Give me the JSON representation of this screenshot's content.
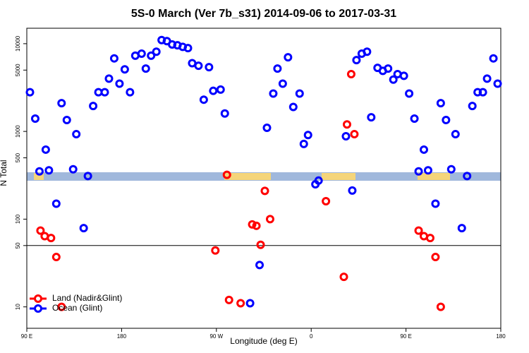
{
  "chart_data": {
    "type": "scatter",
    "title": "5S-0 March (Ver 7b_s31)   2014-09-06 to 2017-03-31",
    "x_label": "Longitude (deg E)",
    "y_label": "N Total",
    "xlim": [
      90,
      540
    ],
    "ylim": [
      5.7,
      15000
    ],
    "log_y": true,
    "xticks": [
      {
        "value": 90,
        "label": "90 E"
      },
      {
        "value": 180,
        "label": "180"
      },
      {
        "value": 270,
        "label": "90 W"
      },
      {
        "value": 360,
        "label": "0"
      },
      {
        "value": 450,
        "label": "90 E"
      },
      {
        "value": 540,
        "label": "180"
      }
    ],
    "yticks": [
      10,
      50,
      100,
      500,
      1000,
      5000,
      10000
    ],
    "hline": 50,
    "legend": "bottom-left",
    "series": [
      {
        "name": "Land (Nadir&Glint)",
        "color": "#ff0000",
        "x": [
          103,
          107,
          113,
          118,
          123,
          269,
          280,
          282,
          293,
          304,
          308,
          312,
          316,
          321,
          374,
          391,
          394,
          398,
          401,
          462,
          467,
          473,
          478,
          483
        ],
        "values": [
          74,
          64,
          61,
          37,
          10,
          44,
          320,
          12,
          11,
          87,
          84,
          51,
          210,
          100,
          160,
          22,
          1200,
          4500,
          930,
          74,
          64,
          61,
          37,
          10
        ]
      },
      {
        "name": "Ocean (Glint)",
        "color": "#0000ff",
        "x": [
          93,
          98,
          102,
          108,
          111,
          118,
          123,
          128,
          134,
          137,
          144,
          148,
          153,
          158,
          164,
          168,
          173,
          178,
          183,
          188,
          193,
          199,
          203,
          208,
          213,
          218,
          223,
          228,
          233,
          238,
          243,
          247,
          253,
          258,
          263,
          267,
          274,
          278,
          302,
          311,
          318,
          324,
          328,
          333,
          338,
          343,
          349,
          353,
          357,
          364,
          367,
          393,
          399,
          403,
          408,
          413,
          417,
          423,
          428,
          433,
          438,
          442,
          448,
          453,
          458,
          462,
          467,
          471,
          478,
          483,
          488,
          493,
          497,
          503,
          508,
          513,
          518,
          523,
          527,
          533,
          537
        ],
        "values": [
          2800,
          1400,
          350,
          620,
          360,
          150,
          2100,
          1350,
          370,
          930,
          79,
          310,
          1950,
          2800,
          2800,
          4000,
          6800,
          3500,
          5100,
          2800,
          7300,
          7700,
          5200,
          7300,
          8100,
          11000,
          10700,
          9800,
          9600,
          9200,
          8900,
          6000,
          5600,
          2300,
          5400,
          2900,
          3000,
          1600,
          11,
          30,
          1100,
          2700,
          5200,
          3500,
          7000,
          1900,
          2700,
          720,
          910,
          250,
          275,
          880,
          212,
          6500,
          7700,
          8100,
          1450,
          5300,
          4900,
          5200,
          3900,
          4500,
          4300,
          2700,
          1400,
          350,
          620,
          360,
          150,
          2100,
          1350,
          370,
          930,
          79,
          310,
          1950,
          2800,
          2800,
          4000,
          6800,
          3500
        ]
      }
    ]
  }
}
